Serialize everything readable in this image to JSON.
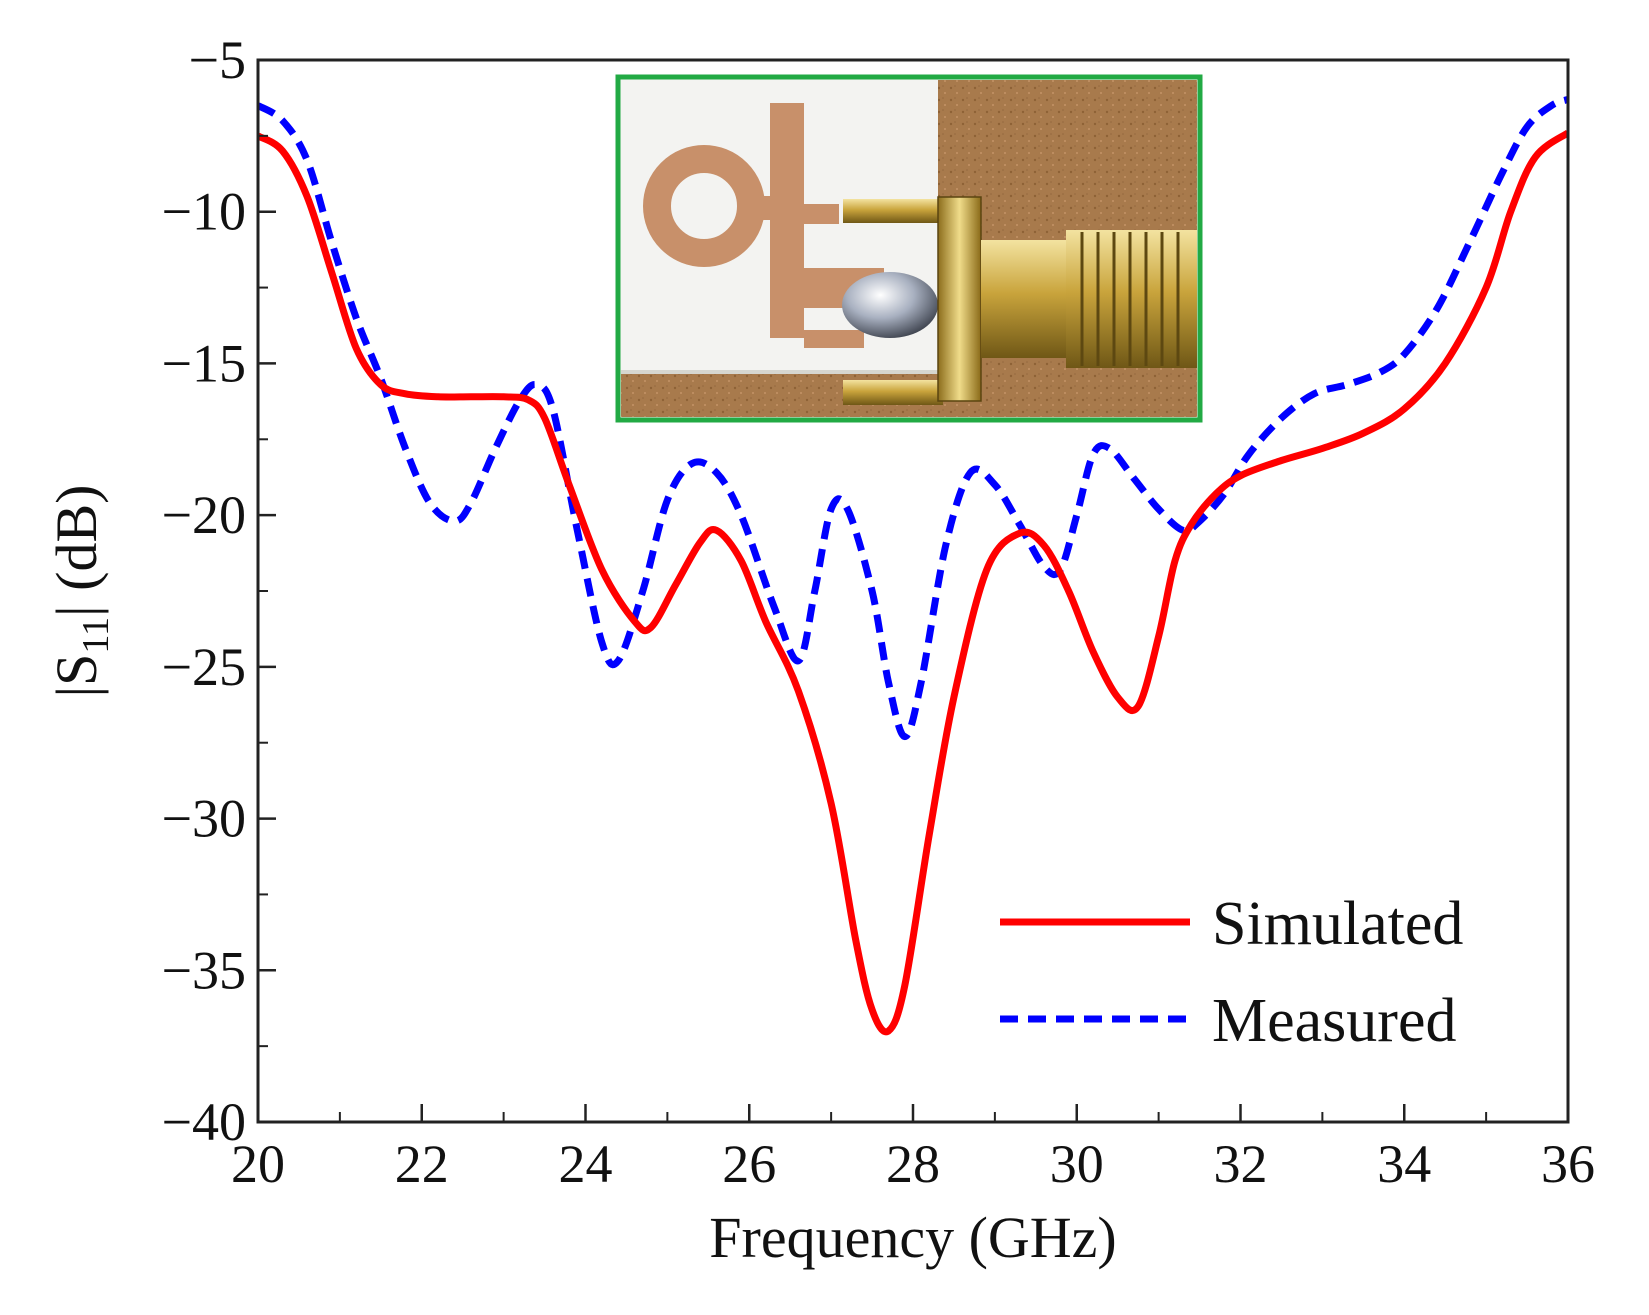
{
  "chart_data": {
    "type": "line",
    "title": "",
    "xlabel": "Frequency (GHz)",
    "ylabel_prefix": "|S",
    "ylabel_sub": "11",
    "ylabel_suffix": "| (dB)",
    "xlim": [
      20,
      36
    ],
    "ylim": [
      -40,
      -5
    ],
    "xticks": [
      20,
      22,
      24,
      26,
      28,
      30,
      32,
      34,
      36
    ],
    "yticks": [
      -5,
      -10,
      -15,
      -20,
      -25,
      -30,
      -35,
      -40
    ],
    "xtick_labels": [
      "20",
      "22",
      "24",
      "26",
      "28",
      "30",
      "32",
      "34",
      "36"
    ],
    "ytick_labels": [
      "−5",
      "−10",
      "−15",
      "−20",
      "−25",
      "−30",
      "−35",
      "−40"
    ],
    "grid": false,
    "legend_position": "bottom-right",
    "series": [
      {
        "name": "Simulated",
        "color": "#ff0000",
        "dash": "solid",
        "x": [
          20.0,
          20.3,
          20.6,
          20.9,
          21.2,
          21.5,
          21.8,
          22.2,
          22.6,
          23.0,
          23.3,
          23.5,
          23.8,
          24.2,
          24.6,
          24.8,
          25.1,
          25.4,
          25.6,
          25.9,
          26.2,
          26.6,
          27.0,
          27.3,
          27.5,
          27.7,
          27.9,
          28.2,
          28.5,
          28.9,
          29.3,
          29.6,
          29.9,
          30.2,
          30.5,
          30.75,
          31.0,
          31.2,
          31.4,
          31.7,
          32.0,
          32.5,
          33.0,
          33.5,
          34.0,
          34.5,
          35.0,
          35.3,
          35.6,
          36.0
        ],
        "y": [
          -7.5,
          -8.0,
          -9.5,
          -12.0,
          -14.5,
          -15.7,
          -16.0,
          -16.1,
          -16.1,
          -16.1,
          -16.2,
          -16.8,
          -19.0,
          -21.8,
          -23.5,
          -23.7,
          -22.3,
          -20.9,
          -20.5,
          -21.5,
          -23.5,
          -25.8,
          -29.5,
          -34.0,
          -36.3,
          -37.0,
          -35.5,
          -30.5,
          -26.0,
          -21.8,
          -20.6,
          -21.0,
          -22.5,
          -24.5,
          -26.0,
          -26.3,
          -24.0,
          -21.5,
          -20.3,
          -19.3,
          -18.7,
          -18.2,
          -17.8,
          -17.3,
          -16.5,
          -15.0,
          -12.5,
          -10.0,
          -8.2,
          -7.4
        ]
      },
      {
        "name": "Measured",
        "color": "#0000ff",
        "dash": "dashed",
        "x": [
          20.0,
          20.3,
          20.6,
          20.9,
          21.2,
          21.5,
          21.8,
          22.1,
          22.4,
          22.6,
          22.9,
          23.2,
          23.4,
          23.6,
          23.9,
          24.2,
          24.4,
          24.7,
          25.0,
          25.3,
          25.6,
          25.9,
          26.3,
          26.6,
          26.8,
          27.0,
          27.2,
          27.5,
          27.7,
          27.9,
          28.1,
          28.4,
          28.7,
          29.0,
          29.3,
          29.6,
          29.8,
          30.0,
          30.2,
          30.4,
          30.7,
          31.0,
          31.3,
          31.5,
          31.8,
          32.1,
          32.5,
          32.9,
          33.3,
          33.7,
          34.0,
          34.4,
          34.8,
          35.2,
          35.5,
          35.8,
          36.0
        ],
        "y": [
          -6.5,
          -7.0,
          -8.3,
          -11.0,
          -13.5,
          -15.5,
          -17.8,
          -19.6,
          -20.2,
          -19.6,
          -17.8,
          -16.2,
          -15.7,
          -16.5,
          -20.5,
          -24.2,
          -24.8,
          -22.5,
          -19.5,
          -18.3,
          -18.6,
          -20.0,
          -23.0,
          -24.8,
          -22.5,
          -19.8,
          -19.8,
          -22.5,
          -25.5,
          -27.3,
          -25.5,
          -21.0,
          -18.6,
          -19.0,
          -20.3,
          -21.7,
          -21.8,
          -20.0,
          -18.0,
          -17.8,
          -18.8,
          -19.8,
          -20.5,
          -20.2,
          -19.3,
          -18.0,
          -16.8,
          -16.0,
          -15.7,
          -15.3,
          -14.7,
          -13.2,
          -11.0,
          -8.7,
          -7.2,
          -6.5,
          -6.3
        ]
      }
    ]
  },
  "inset_photo": {
    "name": "antenna-prototype-photo",
    "border_color": "#22aa44"
  }
}
